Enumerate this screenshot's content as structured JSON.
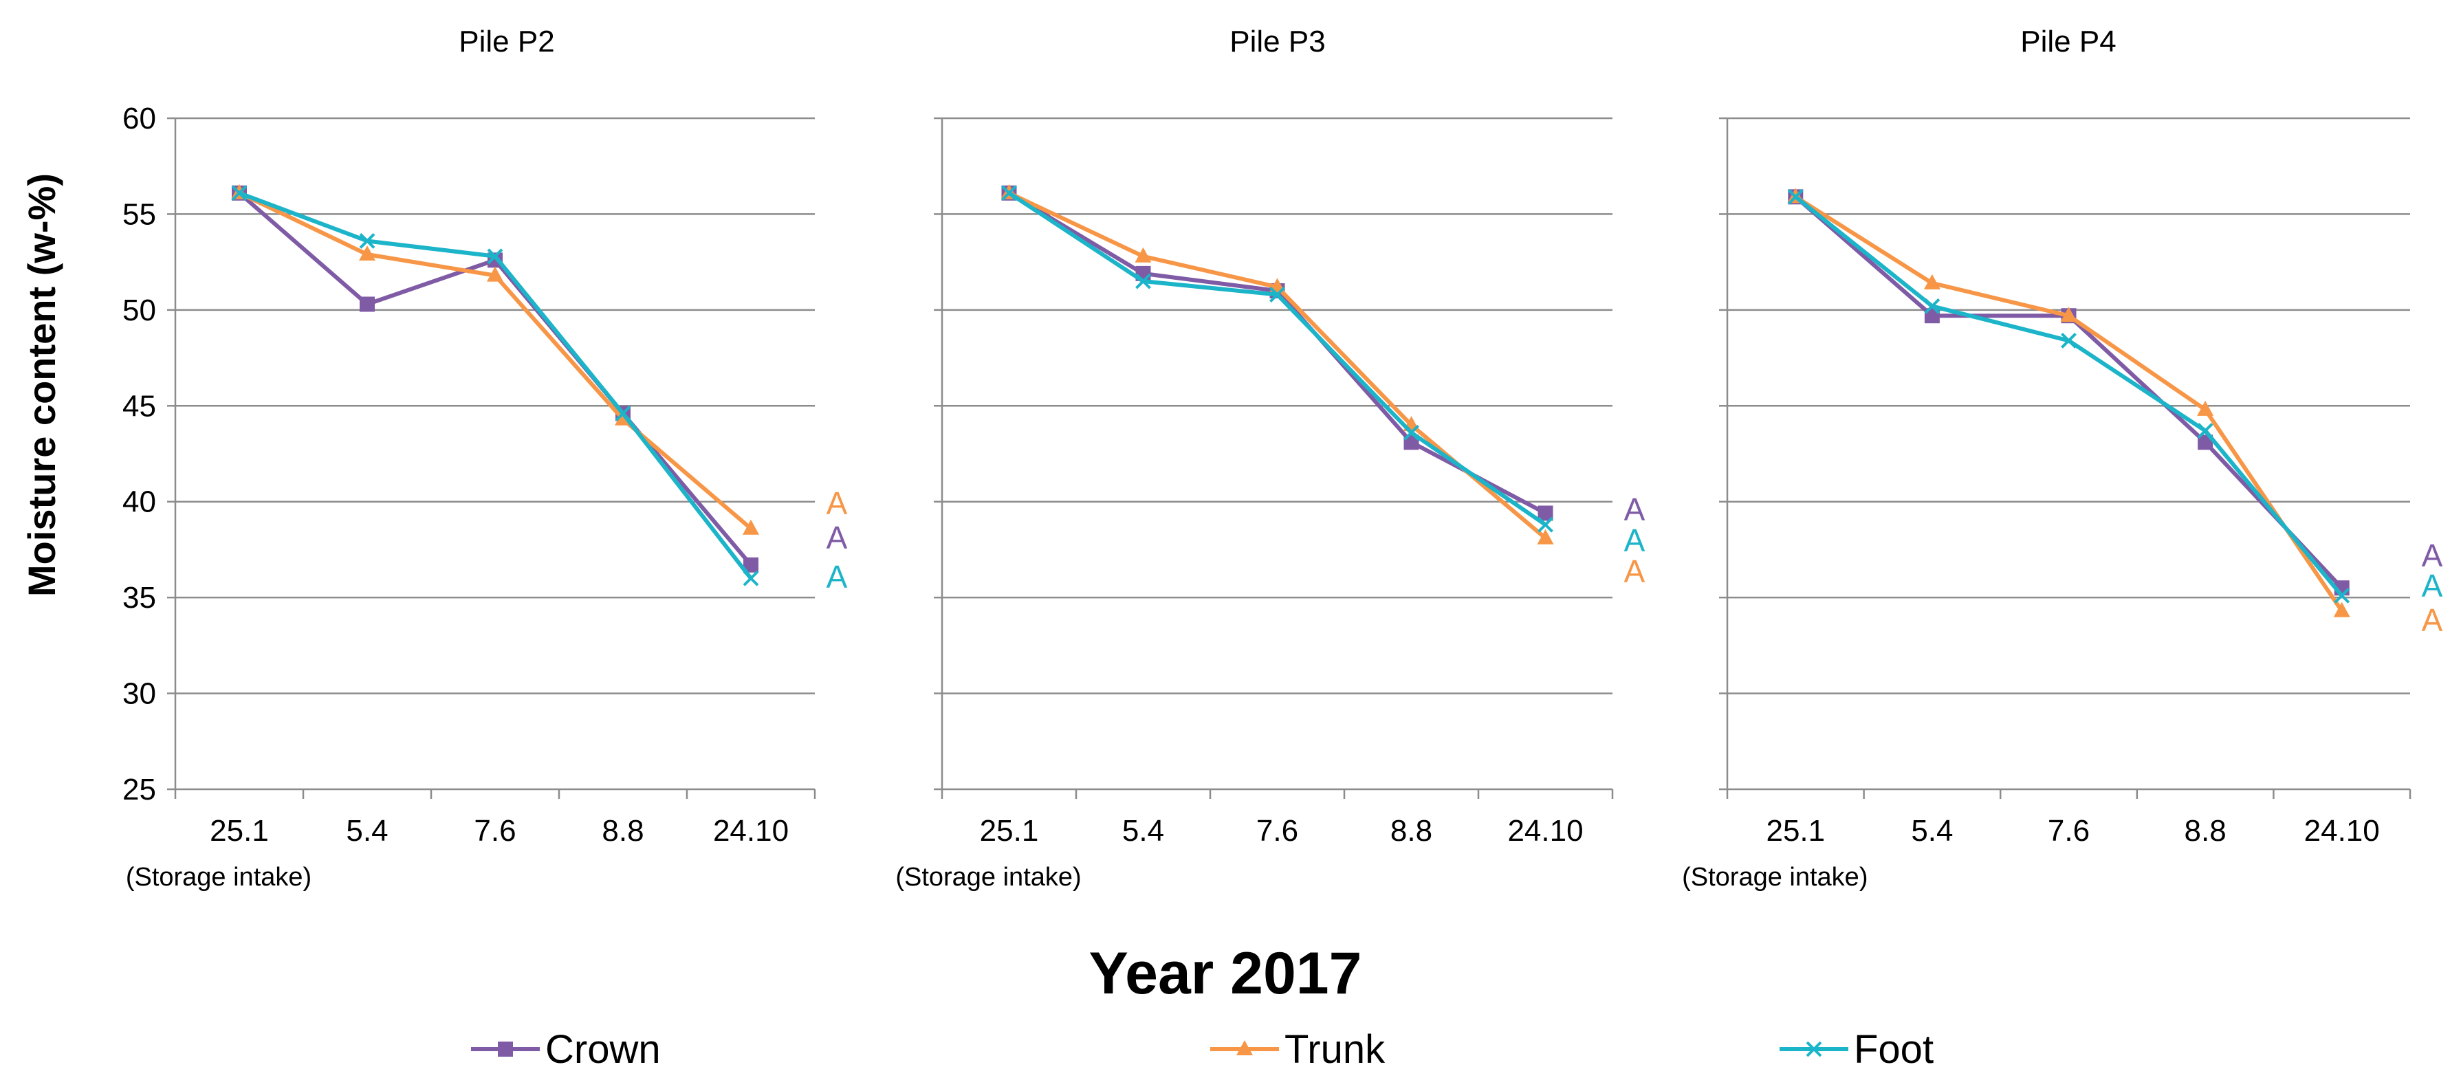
{
  "figure": {
    "ylabel": "Moisture content (w-%)",
    "xlabel": "Year 2017",
    "categories": [
      "25.1",
      "5.4",
      "7.6",
      "8.8",
      "24.10"
    ],
    "first_category_note": "(Storage intake)",
    "yticks": [
      "25",
      "30",
      "35",
      "40",
      "45",
      "50",
      "55",
      "60"
    ]
  },
  "legend": {
    "position": "bottom",
    "items": [
      {
        "name": "Crown",
        "color": "#7F5BA6",
        "marker": "square"
      },
      {
        "name": "Trunk",
        "color": "#F79646",
        "marker": "triangle"
      },
      {
        "name": "Foot",
        "color": "#1CB4C9",
        "marker": "x"
      }
    ]
  },
  "chart_data": [
    {
      "type": "line",
      "title": "Pile P2",
      "categories": [
        "25.1",
        "5.4",
        "7.6",
        "8.8",
        "24.10"
      ],
      "ylim": [
        25,
        60
      ],
      "grid": true,
      "show_ytick_labels": true,
      "series": [
        {
          "name": "Crown",
          "values": [
            56.1,
            50.3,
            52.6,
            44.6,
            36.7
          ]
        },
        {
          "name": "Trunk",
          "values": [
            56.1,
            52.9,
            51.8,
            44.3,
            38.6
          ]
        },
        {
          "name": "Foot",
          "values": [
            56.1,
            53.6,
            52.8,
            44.6,
            36.0
          ]
        }
      ],
      "annotations": [
        {
          "text": "A",
          "color": "#F79646"
        },
        {
          "text": "A",
          "color": "#7F5BA6"
        },
        {
          "text": "A",
          "color": "#1CB4C9"
        }
      ]
    },
    {
      "type": "line",
      "title": "Pile P3",
      "categories": [
        "25.1",
        "5.4",
        "7.6",
        "8.8",
        "24.10"
      ],
      "ylim": [
        25,
        60
      ],
      "grid": true,
      "show_ytick_labels": false,
      "series": [
        {
          "name": "Crown",
          "values": [
            56.1,
            51.9,
            51.0,
            43.1,
            39.4
          ]
        },
        {
          "name": "Trunk",
          "values": [
            56.1,
            52.8,
            51.2,
            44.0,
            38.1
          ]
        },
        {
          "name": "Foot",
          "values": [
            56.1,
            51.5,
            50.8,
            43.6,
            38.8
          ]
        }
      ],
      "annotations": [
        {
          "text": "A",
          "color": "#7F5BA6"
        },
        {
          "text": "A",
          "color": "#1CB4C9"
        },
        {
          "text": "A",
          "color": "#F79646"
        }
      ]
    },
    {
      "type": "line",
      "title": "Pile P4",
      "categories": [
        "25.1",
        "5.4",
        "7.6",
        "8.8",
        "24.10"
      ],
      "ylim": [
        25,
        60
      ],
      "grid": true,
      "show_ytick_labels": false,
      "series": [
        {
          "name": "Crown",
          "values": [
            55.9,
            49.7,
            49.7,
            43.1,
            35.5
          ]
        },
        {
          "name": "Trunk",
          "values": [
            55.9,
            51.4,
            49.7,
            44.8,
            34.3
          ]
        },
        {
          "name": "Foot",
          "values": [
            55.9,
            50.2,
            48.4,
            43.7,
            35.1
          ]
        }
      ],
      "annotations": [
        {
          "text": "A",
          "color": "#7F5BA6"
        },
        {
          "text": "A",
          "color": "#1CB4C9"
        },
        {
          "text": "A",
          "color": "#F79646"
        }
      ]
    }
  ]
}
